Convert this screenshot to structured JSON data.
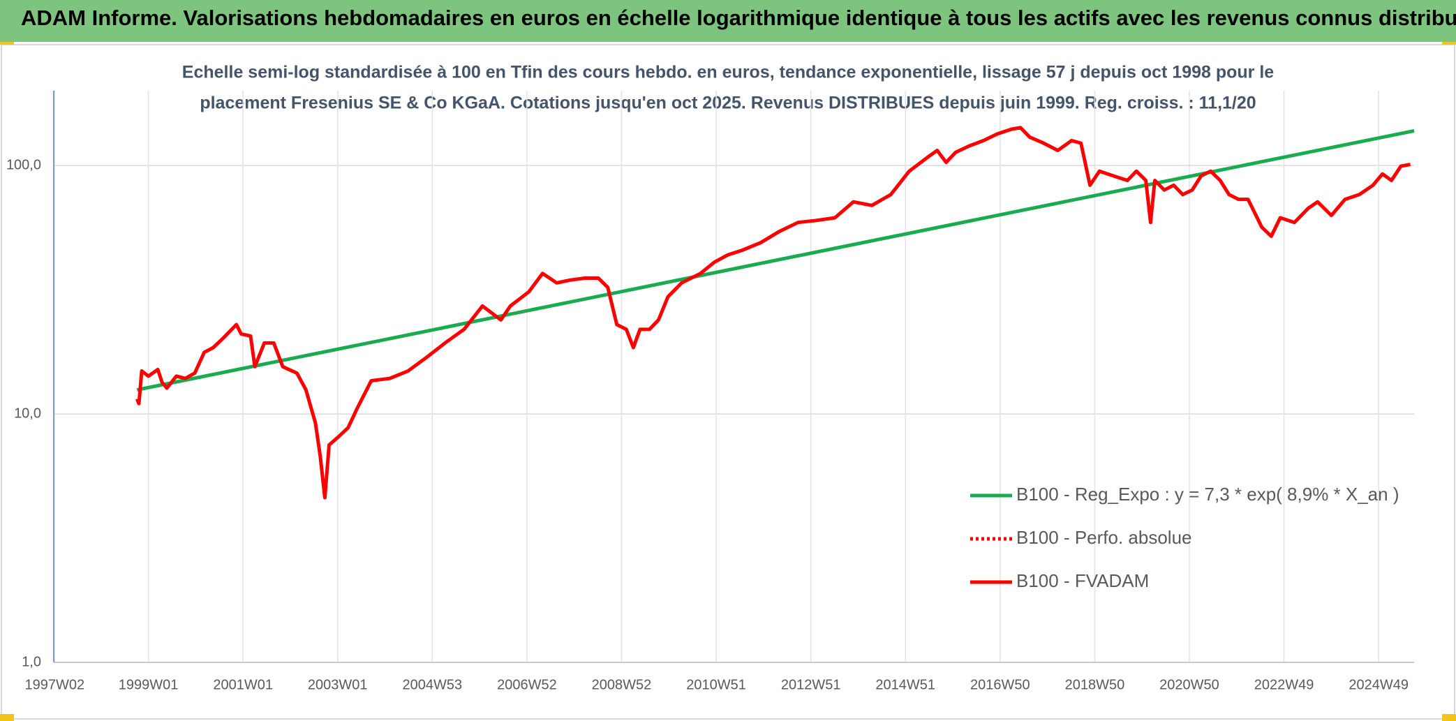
{
  "header": {
    "title": "ADAM Informe. Valorisations hebdomadaires en euros en échelle logarithmique identique à tous les actifs avec les revenus connus distribués"
  },
  "chart_data": {
    "type": "line",
    "title": [
      "Echelle semi-log standardisée à 100 en Tfin des cours hebdo. en euros, tendance exponentielle, lissage 57 j depuis oct 1998 pour le",
      "placement Fresenius SE & Co KGaA. Cotations jusqu'en oct 2025. Revenus DISTRIBUES depuis juin 1999. Reg. croiss. : 11,1/20"
    ],
    "log_scale": true,
    "grid": true,
    "legend": "lower right",
    "xlim": [
      1997.0,
      2025.75
    ],
    "xticks": [
      {
        "value": 1997.02,
        "label": "1997W02"
      },
      {
        "value": 1999.0,
        "label": "1999W01"
      },
      {
        "value": 2001.0,
        "label": "2001W01"
      },
      {
        "value": 2003.0,
        "label": "2003W01"
      },
      {
        "value": 2005.0,
        "label": "2004W53"
      },
      {
        "value": 2007.0,
        "label": "2006W52"
      },
      {
        "value": 2009.0,
        "label": "2008W52"
      },
      {
        "value": 2011.0,
        "label": "2010W51"
      },
      {
        "value": 2013.0,
        "label": "2012W51"
      },
      {
        "value": 2015.0,
        "label": "2014W51"
      },
      {
        "value": 2017.0,
        "label": "2016W50"
      },
      {
        "value": 2019.0,
        "label": "2018W50"
      },
      {
        "value": 2021.0,
        "label": "2020W50"
      },
      {
        "value": 2023.0,
        "label": "2022W49"
      },
      {
        "value": 2025.0,
        "label": "2024W49"
      }
    ],
    "ylim": [
      1,
      200
    ],
    "yticks": [
      {
        "value": 1,
        "label": "1,0"
      },
      {
        "value": 10,
        "label": "10,0"
      },
      {
        "value": 100,
        "label": "100,0"
      }
    ],
    "series": [
      {
        "name": "B100 - Reg_Expo : y = 7,3 * exp( 8,9% *  X_an )",
        "color": "#1aab50",
        "x": [
          1998.76,
          2025.75
        ],
        "values": [
          12.5,
          138
        ]
      },
      {
        "name": "B100 - Perfo. absolue",
        "color": "#ff0000",
        "style": "dotted"
      },
      {
        "name": "B100 - FVADAM",
        "color": "#ff0000",
        "x": [
          1998.76,
          1998.8,
          1998.86,
          1999.0,
          1999.2,
          1999.29,
          1999.39,
          1999.59,
          1999.78,
          1999.98,
          2000.18,
          2000.37,
          2000.57,
          2000.86,
          2000.96,
          2001.16,
          2001.25,
          2001.45,
          2001.65,
          2001.84,
          2002.14,
          2002.33,
          2002.53,
          2002.63,
          2002.73,
          2002.82,
          2003.02,
          2003.22,
          2003.41,
          2003.71,
          2004.1,
          2004.49,
          2004.88,
          2005.27,
          2005.67,
          2006.06,
          2006.45,
          2006.65,
          2007.04,
          2007.33,
          2007.63,
          2007.92,
          2008.22,
          2008.51,
          2008.71,
          2008.9,
          2009.1,
          2009.25,
          2009.39,
          2009.59,
          2009.78,
          2009.98,
          2010.27,
          2010.67,
          2010.96,
          2011.25,
          2011.55,
          2011.94,
          2012.33,
          2012.73,
          2013.12,
          2013.51,
          2013.9,
          2014.29,
          2014.69,
          2015.08,
          2015.47,
          2015.67,
          2015.86,
          2016.06,
          2016.35,
          2016.65,
          2016.94,
          2017.24,
          2017.43,
          2017.63,
          2017.92,
          2018.22,
          2018.51,
          2018.71,
          2018.9,
          2019.1,
          2019.39,
          2019.69,
          2019.88,
          2020.08,
          2020.18,
          2020.27,
          2020.47,
          2020.67,
          2020.86,
          2021.06,
          2021.25,
          2021.45,
          2021.65,
          2021.84,
          2022.04,
          2022.24,
          2022.53,
          2022.73,
          2022.92,
          2023.22,
          2023.51,
          2023.71,
          2024.0,
          2024.29,
          2024.59,
          2024.88,
          2025.08,
          2025.27,
          2025.47,
          2025.67
        ],
        "values": [
          11.5,
          11.0,
          14.9,
          14.2,
          15.1,
          13.4,
          12.7,
          14.2,
          13.9,
          14.6,
          17.7,
          18.5,
          20.1,
          22.9,
          21.0,
          20.6,
          15.5,
          19.3,
          19.3,
          15.5,
          14.6,
          12.5,
          9.2,
          6.8,
          4.6,
          7.5,
          8.1,
          8.8,
          10.5,
          13.6,
          13.9,
          14.9,
          16.9,
          19.3,
          21.9,
          27.2,
          23.9,
          27.2,
          31.0,
          36.8,
          33.7,
          34.6,
          35.2,
          35.2,
          32.3,
          22.9,
          21.9,
          18.5,
          21.9,
          21.9,
          23.9,
          29.6,
          33.7,
          36.8,
          40.8,
          43.7,
          45.6,
          48.9,
          54.2,
          59.0,
          60.1,
          61.6,
          71.4,
          69.1,
          76.4,
          94.9,
          108,
          115,
          103,
          113,
          120,
          126,
          134,
          140,
          142,
          130,
          123,
          115,
          126,
          123,
          83.3,
          94.9,
          90.9,
          87.1,
          94.9,
          87.1,
          59.0,
          87.1,
          79.7,
          83.3,
          76.4,
          79.7,
          90.9,
          94.9,
          87.1,
          76.4,
          73.1,
          73.1,
          56.5,
          51.9,
          61.6,
          59.0,
          67.2,
          71.4,
          63.0,
          73.1,
          76.4,
          83.3,
          92.5,
          87.1,
          99.4,
          101
        ]
      }
    ]
  }
}
